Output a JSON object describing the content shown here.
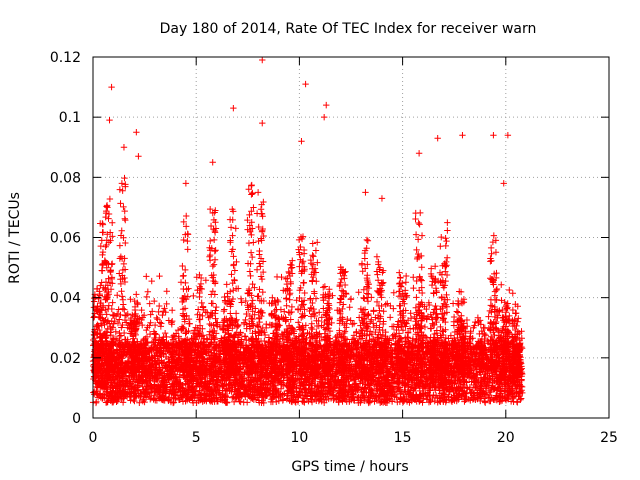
{
  "chart_data": {
    "type": "scatter",
    "title": "Day 180 of 2014, Rate Of TEC Index for receiver warn",
    "xlabel": "GPS time / hours",
    "ylabel": "ROTI / TECUs",
    "xlim": [
      0,
      25
    ],
    "ylim": [
      0,
      0.12
    ],
    "xticks": [
      0,
      5,
      10,
      15,
      20,
      25
    ],
    "xtick_labels": [
      "0",
      "5",
      "10",
      "15",
      "20",
      "25"
    ],
    "yticks": [
      0,
      0.02,
      0.04,
      0.06,
      0.08,
      0.1,
      0.12
    ],
    "ytick_labels": [
      "0",
      "0.02",
      "0.04",
      "0.06",
      "0.08",
      "0.1",
      "0.12"
    ],
    "grid": true,
    "marker": "+",
    "colors": {
      "points": "#ff0000",
      "grid": "#a0a0a0",
      "axis": "#000000"
    },
    "series": [
      {
        "name": "ROTI",
        "x_range": [
          0,
          20.8
        ],
        "baseline_band": [
          0.005,
          0.025
        ],
        "outliers": [
          [
            0.9,
            0.11
          ],
          [
            8.2,
            0.119
          ],
          [
            10.3,
            0.111
          ],
          [
            6.8,
            0.103
          ],
          [
            11.3,
            0.104
          ],
          [
            0.8,
            0.099
          ],
          [
            2.1,
            0.095
          ],
          [
            1.5,
            0.09
          ],
          [
            17.9,
            0.094
          ],
          [
            19.4,
            0.094
          ],
          [
            20.1,
            0.094
          ],
          [
            16.7,
            0.093
          ],
          [
            11.2,
            0.1
          ],
          [
            8.2,
            0.098
          ],
          [
            10.1,
            0.092
          ],
          [
            15.8,
            0.088
          ],
          [
            5.8,
            0.085
          ],
          [
            13.2,
            0.075
          ],
          [
            4.5,
            0.078
          ],
          [
            2.2,
            0.087
          ],
          [
            0.7,
            0.07
          ],
          [
            1.4,
            0.078
          ],
          [
            19.9,
            0.078
          ],
          [
            14.0,
            0.073
          ],
          [
            8.0,
            0.075
          ]
        ]
      }
    ]
  }
}
